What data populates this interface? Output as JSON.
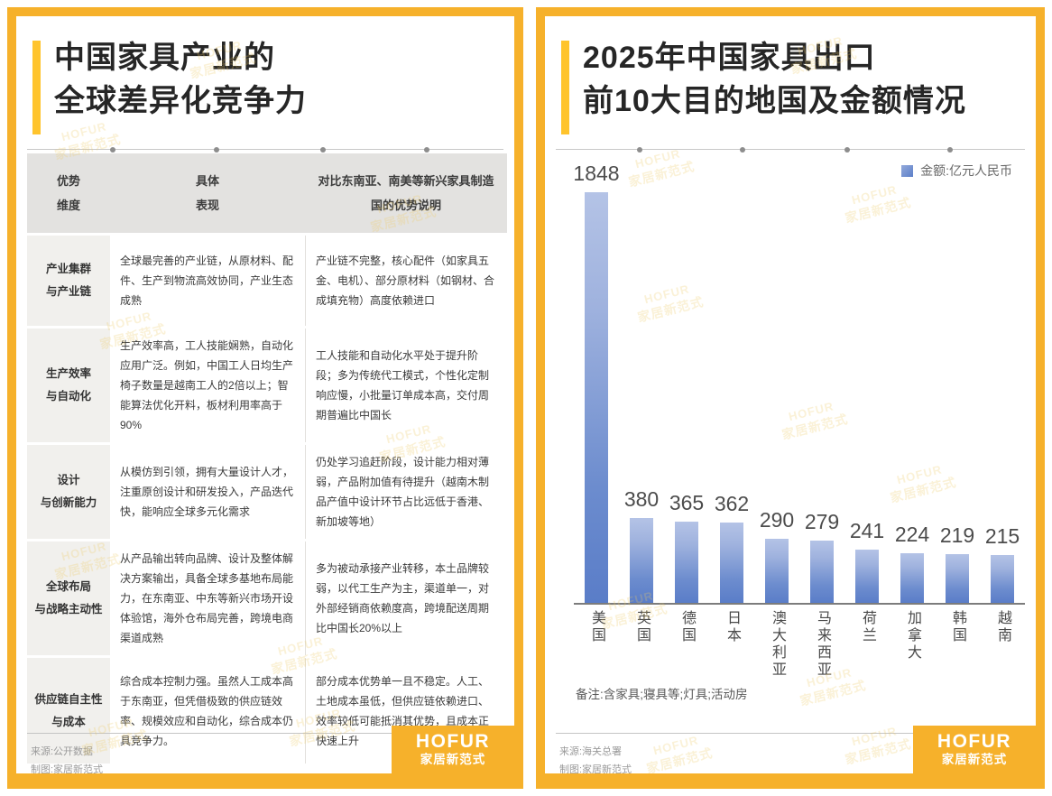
{
  "badge": {
    "brand": "HOFUR",
    "name": "家居新范式"
  },
  "left_panel": {
    "title_line1": "中国家具产业的",
    "title_line2": "全球差异化竞争力",
    "table": {
      "headers": {
        "col1": [
          "优势",
          "维度"
        ],
        "col2": [
          "具体",
          "表现"
        ],
        "col3": "对比东南亚、南美等新兴家具制造国的优势说明"
      },
      "rows": [
        {
          "dimension": [
            "产业集群",
            "与产业链"
          ],
          "specific": "全球最完善的产业链，从原材料、配件、生产到物流高效协同，产业生态成熟",
          "comparison": "产业链不完整，核心配件（如家具五金、电机）、部分原材料（如钢材、合成填充物）高度依赖进口"
        },
        {
          "dimension": [
            "生产效率",
            "与自动化"
          ],
          "specific": "生产效率高，工人技能娴熟，自动化应用广泛。例如，中国工人日均生产椅子数量是越南工人的2倍以上；智能算法优化开料，板材利用率高于90%",
          "comparison": "工人技能和自动化水平处于提升阶段；多为传统代工模式，个性化定制响应慢，小批量订单成本高，交付周期普遍比中国长"
        },
        {
          "dimension": [
            "设计",
            "与创新能力"
          ],
          "specific": "从模仿到引领，拥有大量设计人才，注重原创设计和研发投入，产品迭代快，能响应全球多元化需求",
          "comparison": "仍处学习追赶阶段，设计能力相对薄弱，产品附加值有待提升（越南木制品产值中设计环节占比远低于香港、新加坡等地）"
        },
        {
          "dimension": [
            "全球布局",
            "与战略主动性"
          ],
          "specific": "从产品输出转向品牌、设计及整体解决方案输出，具备全球多基地布局能力，在东南亚、中东等新兴市场开设体验馆，海外仓布局完善，跨境电商渠道成熟",
          "comparison": "多为被动承接产业转移，本土品牌较弱，以代工生产为主，渠道单一，对外部经销商依赖度高，跨境配送周期比中国长20%以上"
        },
        {
          "dimension": [
            "供应链自主性",
            "与成本"
          ],
          "specific": "综合成本控制力强。虽然人工成本高于东南亚，但凭借极致的供应链效率、规模效应和自动化，综合成本仍具竞争力。",
          "comparison": "部分成本优势单一且不稳定。人工、土地成本虽低，但供应链依赖进口、效率较低可能抵消其优势，且成本正快速上升"
        }
      ]
    },
    "source_line1": "来源:公开数据",
    "source_line2": "制图:家居新范式"
  },
  "right_panel": {
    "title_line1": "2025年中国家具出口",
    "title_line2": "前10大目的地国及金额情况",
    "legend_label": "金额:亿元人民币",
    "note": "备注:含家具;寝具等;灯具;活动房",
    "source_line1": "来源:海关总署",
    "source_line2": "制图:家居新范式"
  },
  "chart_data": {
    "type": "bar",
    "title": "2025年中国家具出口前10大目的地国及金额情况",
    "categories": [
      "美国",
      "英国",
      "德国",
      "日本",
      "澳大利亚",
      "马来西亚",
      "荷兰",
      "加拿大",
      "韩国",
      "越南"
    ],
    "values": [
      1848,
      380,
      365,
      362,
      290,
      279,
      241,
      224,
      219,
      215
    ],
    "series_name": "金额:亿元人民币",
    "unit": "亿元人民币",
    "ylabel": "",
    "xlabel": "",
    "ylim": [
      0,
      1900
    ],
    "grid": false,
    "legend_position": "top-right",
    "data_labels": true,
    "bar_gradient": [
      "#B4C3E6",
      "#5A7DC8"
    ]
  }
}
